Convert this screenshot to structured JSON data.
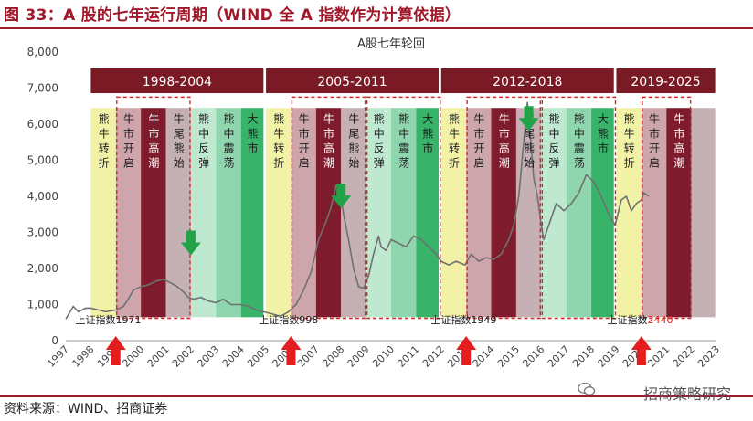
{
  "figure": {
    "title": "图 33：A 股的七年运行周期（WIND 全 A 指数作为计算依据）",
    "source": "资料来源：WIND、招商证券",
    "brand": "招商策略研究"
  },
  "chart_data": {
    "type": "line",
    "title": "A股七年轮回",
    "xlabel": "",
    "ylabel": "",
    "ylim": [
      0,
      8000
    ],
    "yticks": [
      "0",
      "1,000",
      "2,000",
      "3,000",
      "4,000",
      "5,000",
      "6,000",
      "7,000",
      "8,000"
    ],
    "xticks": [
      "1997",
      "1998",
      "1999",
      "2000",
      "2001",
      "2002",
      "2003",
      "2004",
      "2005",
      "2006",
      "2007",
      "2008",
      "2009",
      "2010",
      "2011",
      "2012",
      "2013",
      "2014",
      "2015",
      "2016",
      "2017",
      "2018",
      "2019",
      "2020",
      "2021",
      "2022",
      "2023"
    ],
    "grid": false,
    "series": [
      {
        "values_x": [
          1997.0,
          1997.3,
          1997.5,
          1997.8,
          1998.0,
          1998.3,
          1998.6,
          1999.0,
          1999.3,
          1999.45,
          1999.7,
          2000.0,
          2000.3,
          2000.6,
          2000.9,
          2001.2,
          2001.45,
          2001.7,
          2001.9,
          2002.1,
          2002.4,
          2002.7,
          2003.0,
          2003.3,
          2003.6,
          2004.0,
          2004.3,
          2004.6,
          2004.9,
          2005.2,
          2005.45,
          2005.6,
          2005.9,
          2006.2,
          2006.5,
          2006.8,
          2007.1,
          2007.4,
          2007.6,
          2007.8,
          2007.95,
          2008.1,
          2008.3,
          2008.5,
          2008.7,
          2008.9,
          2009.1,
          2009.3,
          2009.5,
          2009.6,
          2009.8,
          2010.0,
          2010.3,
          2010.6,
          2010.9,
          2011.2,
          2011.5,
          2011.8,
          2012.0,
          2012.3,
          2012.6,
          2012.95,
          2013.2,
          2013.5,
          2013.8,
          2014.1,
          2014.4,
          2014.7,
          2014.9,
          2015.1,
          2015.3,
          2015.45,
          2015.55,
          2015.7,
          2015.85,
          2016.0,
          2016.1,
          2016.3,
          2016.6,
          2016.9,
          2017.2,
          2017.5,
          2017.8,
          2018.1,
          2018.4,
          2018.7,
          2018.95,
          2019.2,
          2019.4,
          2019.6,
          2019.8,
          2020.0,
          2020.1,
          2020.3
        ],
        "values": [
          600,
          950,
          800,
          900,
          900,
          850,
          800,
          850,
          950,
          1100,
          1400,
          1500,
          1550,
          1650,
          1700,
          1600,
          1500,
          1350,
          1200,
          1150,
          1200,
          1100,
          1050,
          1150,
          1000,
          1000,
          950,
          850,
          800,
          750,
          700,
          680,
          800,
          1000,
          1400,
          1900,
          2800,
          3300,
          3700,
          4300,
          4200,
          3500,
          2800,
          2000,
          1500,
          1450,
          1800,
          2400,
          2900,
          2600,
          2500,
          2800,
          2700,
          2600,
          2900,
          2800,
          2600,
          2400,
          2200,
          2100,
          2200,
          2100,
          2400,
          2200,
          2300,
          2250,
          2400,
          2800,
          3200,
          4000,
          5500,
          6600,
          5800,
          4500,
          4000,
          3200,
          2800,
          3200,
          3800,
          3600,
          3800,
          4100,
          4600,
          4400,
          4000,
          3500,
          3200,
          3900,
          4000,
          3600,
          3800,
          3900,
          4100,
          4000
        ]
      }
    ],
    "periods": [
      {
        "label": "1998-2004",
        "start": 1998.0,
        "end": 2004.9
      },
      {
        "label": "2005-2011",
        "start": 2005.0,
        "end": 2011.9
      },
      {
        "label": "2012-2018",
        "start": 2012.0,
        "end": 2018.9
      },
      {
        "label": "2019-2025",
        "start": 2019.0,
        "end": 2022.95
      }
    ],
    "phases": [
      {
        "label": "熊牛转折",
        "start": 1998.0,
        "end": 1999.0,
        "color": "#f2f2a6"
      },
      {
        "label": "牛市开启",
        "start": 1999.0,
        "end": 2000.0,
        "color": "#cfa5ac"
      },
      {
        "label": "牛市高潮",
        "start": 2000.0,
        "end": 2001.0,
        "color": "#7e1c2d"
      },
      {
        "label": "牛尾熊始",
        "start": 2001.0,
        "end": 2002.0,
        "color": "#c5b0b4"
      },
      {
        "label": "熊中反弹",
        "start": 2002.0,
        "end": 2003.0,
        "color": "#bfe8d0"
      },
      {
        "label": "熊中震荡",
        "start": 2003.0,
        "end": 2004.0,
        "color": "#8fd6ae"
      },
      {
        "label": "大熊市",
        "start": 2004.0,
        "end": 2004.9,
        "color": "#37b36a"
      },
      {
        "label": "熊牛转折",
        "start": 2005.0,
        "end": 2006.0,
        "color": "#f2f2a6"
      },
      {
        "label": "牛市开启",
        "start": 2006.0,
        "end": 2007.0,
        "color": "#cfa5ac"
      },
      {
        "label": "牛市高潮",
        "start": 2007.0,
        "end": 2008.0,
        "color": "#7e1c2d"
      },
      {
        "label": "牛尾熊始",
        "start": 2008.0,
        "end": 2009.0,
        "color": "#c5b0b4"
      },
      {
        "label": "熊中反弹",
        "start": 2009.0,
        "end": 2010.0,
        "color": "#bfe8d0"
      },
      {
        "label": "熊中震荡",
        "start": 2010.0,
        "end": 2011.0,
        "color": "#8fd6ae"
      },
      {
        "label": "大熊市",
        "start": 2011.0,
        "end": 2011.9,
        "color": "#37b36a"
      },
      {
        "label": "熊牛转折",
        "start": 2012.0,
        "end": 2013.0,
        "color": "#f2f2a6"
      },
      {
        "label": "牛市开启",
        "start": 2013.0,
        "end": 2014.0,
        "color": "#cfa5ac"
      },
      {
        "label": "牛市高潮",
        "start": 2014.0,
        "end": 2015.0,
        "color": "#7e1c2d"
      },
      {
        "label": "牛尾熊始",
        "start": 2015.0,
        "end": 2016.0,
        "color": "#c5b0b4"
      },
      {
        "label": "熊中反弹",
        "start": 2016.0,
        "end": 2017.0,
        "color": "#bfe8d0"
      },
      {
        "label": "熊中震荡",
        "start": 2017.0,
        "end": 2018.0,
        "color": "#8fd6ae"
      },
      {
        "label": "大熊市",
        "start": 2018.0,
        "end": 2018.9,
        "color": "#37b36a"
      },
      {
        "label": "熊牛转折",
        "start": 2019.0,
        "end": 2020.0,
        "color": "#f2f2a6"
      },
      {
        "label": "牛市开启",
        "start": 2020.0,
        "end": 2021.0,
        "color": "#cfa5ac"
      },
      {
        "label": "牛市高潮",
        "start": 2021.0,
        "end": 2022.0,
        "color": "#7e1c2d"
      },
      {
        "label": "",
        "start": 2022.0,
        "end": 2022.95,
        "color": "#c5b0b4"
      }
    ],
    "dashed_boxes": [
      {
        "start": 1999.0,
        "end": 2002.0
      },
      {
        "start": 2006.0,
        "end": 2009.0
      },
      {
        "start": 2009.0,
        "end": 2012.0
      },
      {
        "start": 2013.0,
        "end": 2016.0
      },
      {
        "start": 2016.0,
        "end": 2019.0
      },
      {
        "start": 2020.0,
        "end": 2022.0
      }
    ],
    "annotations": [
      {
        "text": "上证指数1971",
        "x": 1998.7,
        "highlight": ""
      },
      {
        "text": "上证指数998",
        "x": 2005.9,
        "highlight": ""
      },
      {
        "text": "上证指数1949",
        "x": 2012.9,
        "highlight": ""
      },
      {
        "text": "上证指数",
        "x": 2019.95,
        "highlight": "2440"
      }
    ],
    "up_arrows_x": [
      1999.0,
      2006.0,
      2013.0,
      2020.0
    ],
    "down_arrows": [
      {
        "x": 2002.0,
        "y": 3050
      },
      {
        "x": 2008.0,
        "y": 4350
      },
      {
        "x": 2015.5,
        "y": 6500
      }
    ],
    "colors": {
      "line": "#707070",
      "banner": "#7a1a24",
      "dashed_box": "#d12a2a",
      "up_arrow": "#e41e1e",
      "down_arrow": "#22a349",
      "title": "#a0192a"
    }
  }
}
